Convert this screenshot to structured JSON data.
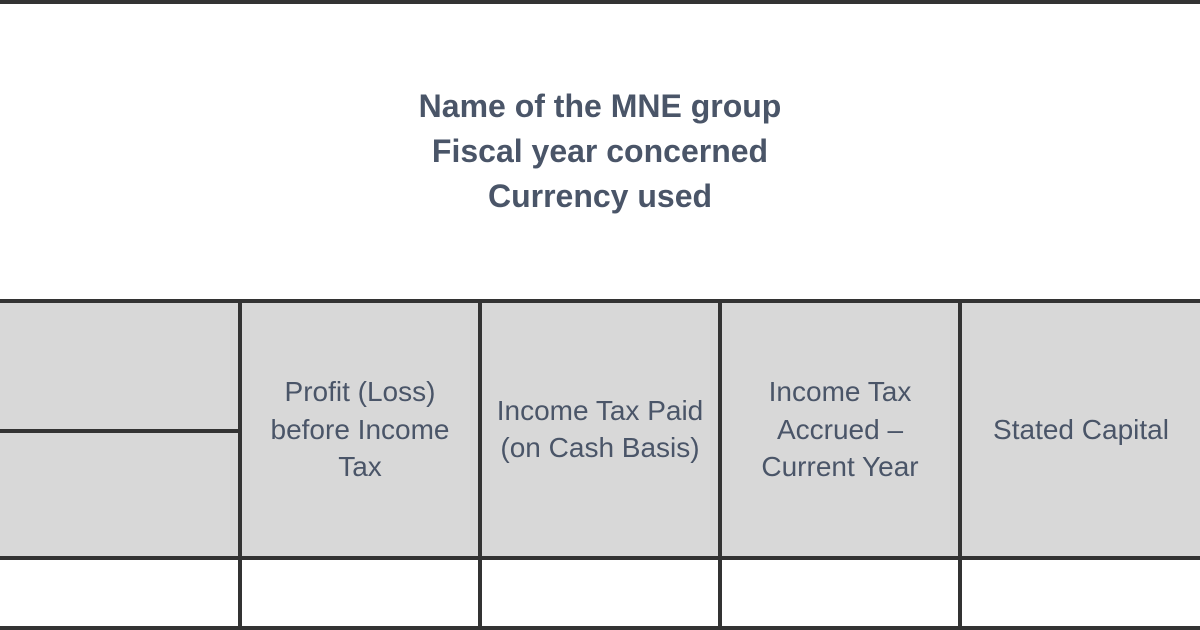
{
  "table": {
    "header": {
      "line1": "Name of the MNE group",
      "line2": "Fiscal year concerned",
      "line3": "Currency used"
    },
    "columns": [
      {
        "label": "Profit (Loss) before Income Tax"
      },
      {
        "label": "Income Tax Paid (on Cash Basis)"
      },
      {
        "label": "Income Tax Accrued – Current Year"
      },
      {
        "label": "Stated Capital"
      }
    ],
    "styling": {
      "border_color": "#333333",
      "border_width": 4,
      "header_bg": "#ffffff",
      "column_header_bg": "#d8d8d8",
      "text_color": "#4a5568",
      "header_fontsize": 32,
      "column_fontsize": 28,
      "font_family": "Arial"
    }
  }
}
